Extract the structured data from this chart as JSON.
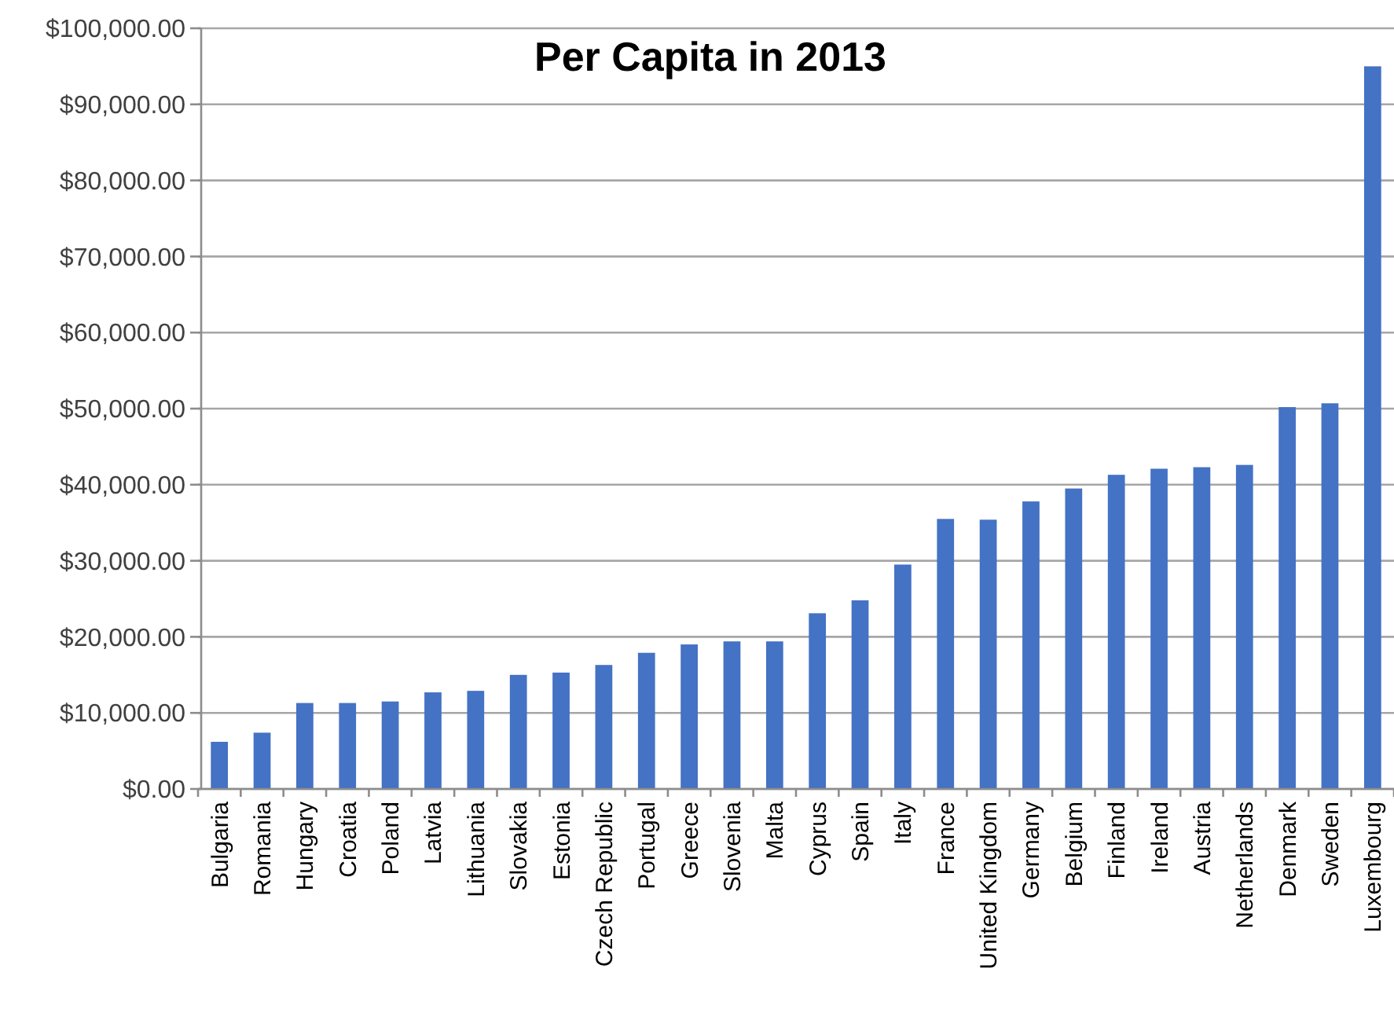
{
  "chart_data": {
    "type": "bar",
    "title": "Per Capita in 2013",
    "categories": [
      "Bulgaria",
      "Romania",
      "Hungary",
      "Croatia",
      "Poland",
      "Latvia",
      "Lithuania",
      "Slovakia",
      "Estonia",
      "Czech Republic",
      "Portugal",
      "Greece",
      "Slovenia",
      "Malta",
      "Cyprus",
      "Spain",
      "Italy",
      "France",
      "United Kingdom",
      "Germany",
      "Belgium",
      "Finland",
      "Ireland",
      "Austria",
      "Netherlands",
      "Denmark",
      "Sweden",
      "Luxembourg"
    ],
    "values": [
      6200,
      7400,
      11300,
      11300,
      11500,
      12700,
      12900,
      15000,
      15300,
      16300,
      17900,
      19000,
      19400,
      19400,
      23100,
      24800,
      29500,
      35500,
      35400,
      37800,
      39500,
      41300,
      42100,
      42300,
      42600,
      50200,
      50700,
      95000
    ],
    "color": "#4472c4",
    "ylim": [
      0,
      100000
    ],
    "yticks": [
      {
        "value": 0,
        "label": "$0.00"
      },
      {
        "value": 10000,
        "label": "$10,000.00"
      },
      {
        "value": 20000,
        "label": "$20,000.00"
      },
      {
        "value": 30000,
        "label": "$30,000.00"
      },
      {
        "value": 40000,
        "label": "$40,000.00"
      },
      {
        "value": 50000,
        "label": "$50,000.00"
      },
      {
        "value": 60000,
        "label": "$60,000.00"
      },
      {
        "value": 70000,
        "label": "$70,000.00"
      },
      {
        "value": 80000,
        "label": "$80,000.00"
      },
      {
        "value": 90000,
        "label": "$90,000.00"
      },
      {
        "value": 100000,
        "label": "$100,000.00"
      }
    ],
    "grid": "y"
  }
}
